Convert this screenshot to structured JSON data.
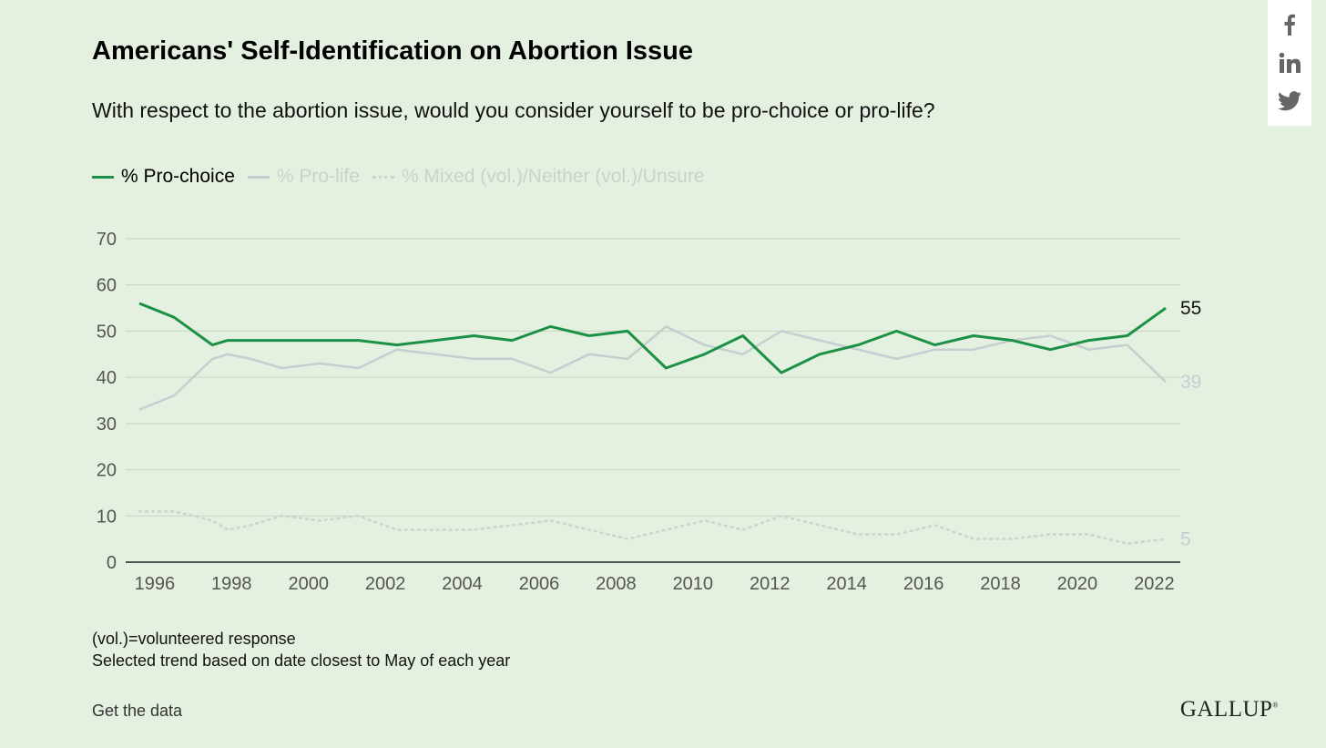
{
  "title": "Americans' Self-Identification on Abortion Issue",
  "subtitle": "With respect to the abortion issue, would you consider yourself to be pro-choice or pro-life?",
  "notes": [
    "(vol.)=volunteered response",
    "Selected trend based on date closest to May of each year"
  ],
  "get_data_label": "Get the data",
  "logo": "GALLUP",
  "share": {
    "icons": [
      "facebook-icon",
      "linkedin-icon",
      "twitter-icon"
    ]
  },
  "chart_data": {
    "type": "line",
    "title": "Americans' Self-Identification on Abortion Issue",
    "x": [
      1995.6,
      1996.5,
      1997.5,
      1997.9,
      1998.5,
      1999.3,
      2000.3,
      2001.3,
      2002.3,
      2003.3,
      2004.3,
      2005.3,
      2006.3,
      2007.3,
      2008.3,
      2009.3,
      2010.3,
      2011.3,
      2012.3,
      2013.3,
      2014.3,
      2015.3,
      2016.3,
      2017.3,
      2018.3,
      2019.3,
      2020.3,
      2021.3,
      2022.3
    ],
    "xticks": [
      1996,
      1998,
      2000,
      2002,
      2004,
      2006,
      2008,
      2010,
      2012,
      2014,
      2016,
      2018,
      2020,
      2022
    ],
    "xlim": [
      1995.6,
      2022.9
    ],
    "ylim": [
      0,
      70
    ],
    "yticks": [
      0,
      10,
      20,
      30,
      40,
      50,
      60,
      70
    ],
    "grid": true,
    "legend_position": "top-left",
    "series": [
      {
        "name": "% Pro-choice",
        "color": "#1c9145",
        "style": "solid",
        "end_label": "55",
        "values": [
          56,
          53,
          47,
          48,
          48,
          48,
          48,
          48,
          47,
          48,
          49,
          48,
          51,
          49,
          50,
          42,
          45,
          49,
          41,
          45,
          47,
          50,
          47,
          49,
          48,
          46,
          48,
          49,
          55
        ]
      },
      {
        "name": "% Pro-life",
        "color": "#c5ced0",
        "style": "solid",
        "end_label": "39",
        "values": [
          33,
          36,
          44,
          45,
          44,
          42,
          43,
          42,
          46,
          45,
          44,
          44,
          41,
          45,
          44,
          51,
          47,
          45,
          50,
          48,
          46,
          44,
          46,
          46,
          48,
          49,
          46,
          47,
          39
        ]
      },
      {
        "name": "% Mixed (vol.)/Neither (vol.)/Unsure",
        "color": "#c9d6cc",
        "style": "dotted",
        "end_label": "5",
        "values": [
          11,
          11,
          9,
          7,
          8,
          10,
          9,
          10,
          7,
          7,
          7,
          8,
          9,
          7,
          5,
          7,
          9,
          7,
          10,
          8,
          6,
          6,
          8,
          5,
          5,
          6,
          6,
          4,
          5
        ]
      }
    ]
  }
}
